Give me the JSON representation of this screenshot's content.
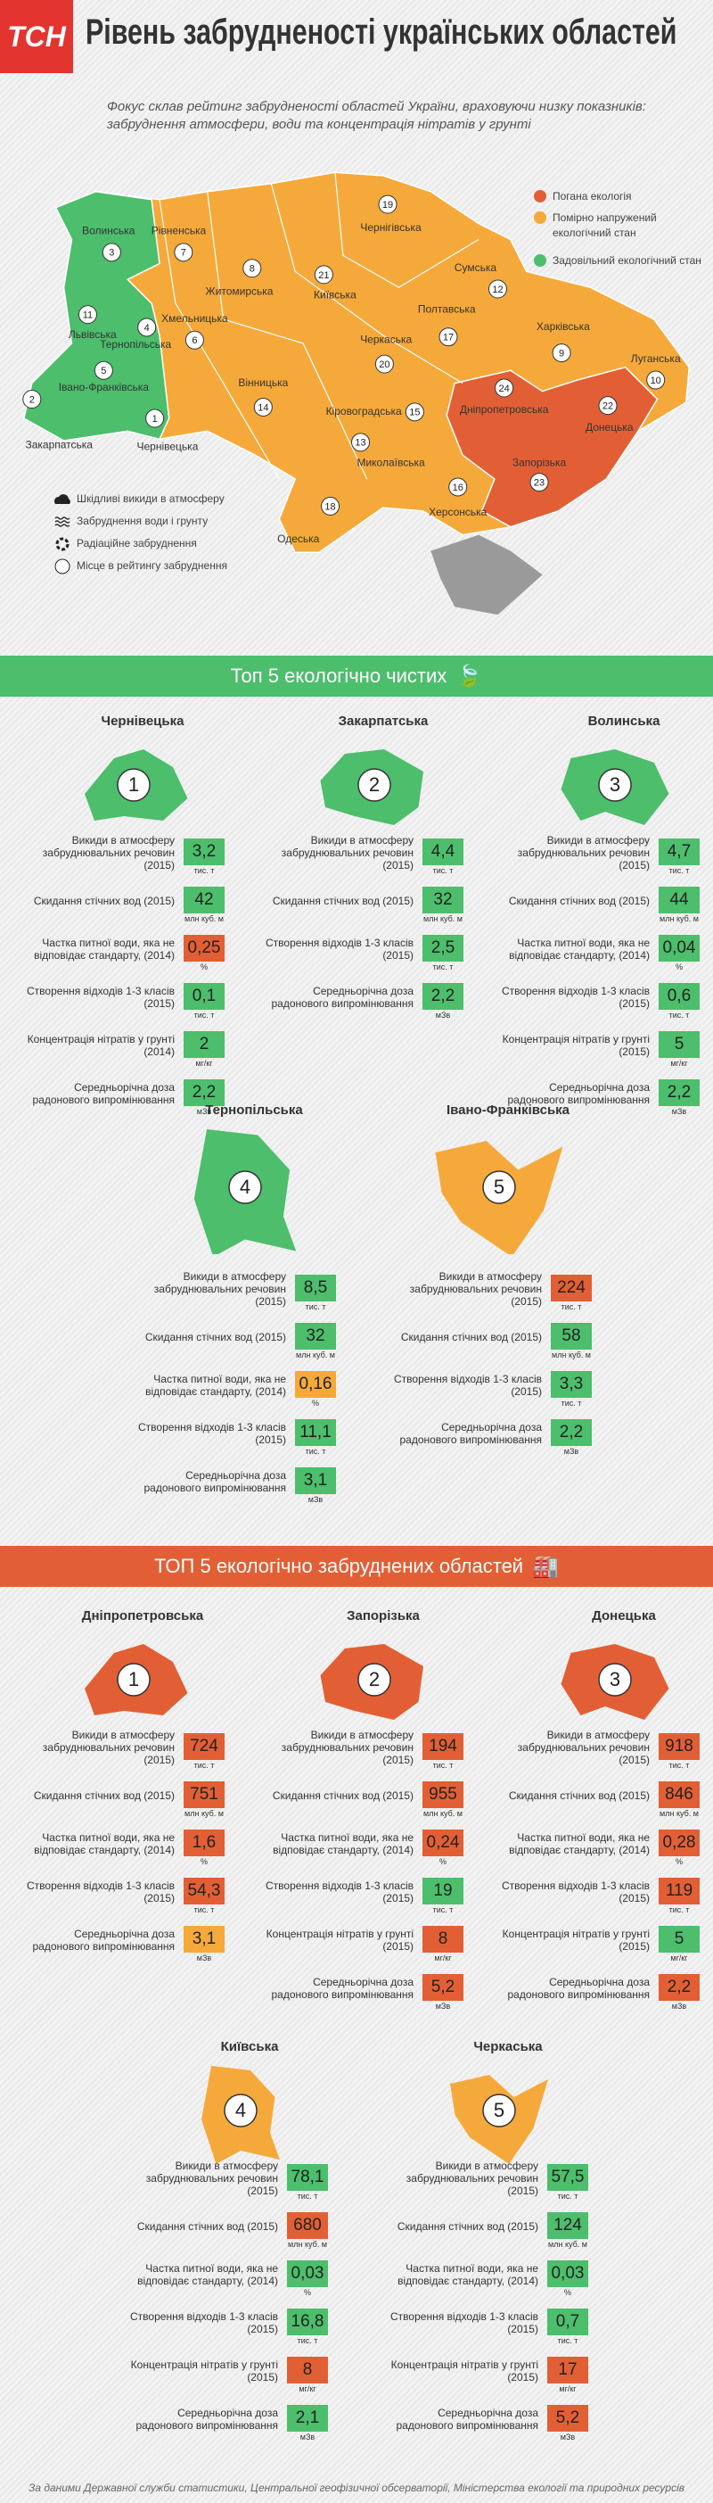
{
  "header": {
    "logo": "ТСН",
    "title": "Рівень забрудненості українських областей"
  },
  "intro": "Фокус склав рейтинг забрудненості областей України, враховуючи низку показників: забруднення атмосфери, води та концентрація нітратів у грунті",
  "map": {
    "legend": [
      {
        "label": "Погана екологія",
        "color": "#e25f35"
      },
      {
        "label": "Помірно напружений екологічний стан",
        "color": "#f6a93b"
      },
      {
        "label": "Задовільний екологічний стан",
        "color": "#4cbe6c"
      }
    ],
    "icon_legend": [
      "Шкідливі викиди в атмосферу",
      "Забруднення води і грунту",
      "Радіаційне забруднення",
      "Місце в рейтингу забруднення"
    ],
    "regions": [
      {
        "name": "Волинська",
        "rank": 3
      },
      {
        "name": "Рівненська",
        "rank": 7
      },
      {
        "name": "Житомирська",
        "rank": 8
      },
      {
        "name": "Чернігівська",
        "rank": 19
      },
      {
        "name": "Сумська",
        "rank": 12
      },
      {
        "name": "Київська",
        "rank": 21
      },
      {
        "name": "Львівська",
        "rank": 11
      },
      {
        "name": "Тернопільська",
        "rank": 4
      },
      {
        "name": "Хмельницька",
        "rank": 6
      },
      {
        "name": "Закарпатська",
        "rank": 2
      },
      {
        "name": "Івано-Франківська",
        "rank": 5
      },
      {
        "name": "Чернівецька",
        "rank": 1
      },
      {
        "name": "Вінницька",
        "rank": 14
      },
      {
        "name": "Черкаська",
        "rank": 20
      },
      {
        "name": "Полтавська",
        "rank": 17
      },
      {
        "name": "Харківська",
        "rank": 9
      },
      {
        "name": "Луганська",
        "rank": 10
      },
      {
        "name": "Кіровоградська",
        "rank": 15
      },
      {
        "name": "Дніпропетровська",
        "rank": 24
      },
      {
        "name": "Донецька",
        "rank": 22
      },
      {
        "name": "Запорізька",
        "rank": 23
      },
      {
        "name": "Миколаївська",
        "rank": 13
      },
      {
        "name": "Херсонська",
        "rank": 16
      },
      {
        "name": "Одеська",
        "rank": 18
      }
    ]
  },
  "clean_section": {
    "title": "Топ 5 екологічно чистих",
    "color": "#4cbe6c",
    "cards": [
      {
        "region": "Чернівецька",
        "rank": 1,
        "color": "#4cbe6c",
        "rows": [
          {
            "label": "Викиди в атмосферу забруднювальних речовин (2015)",
            "value": "3,2",
            "unit": "тис. т",
            "color": "#4cbe6c"
          },
          {
            "label": "Скидання стічних вод (2015)",
            "value": "42",
            "unit": "млн куб. м",
            "color": "#4cbe6c"
          },
          {
            "label": "Частка питної води, яка не відповідає стандарту, (2014)",
            "value": "0,25",
            "unit": "%",
            "color": "#e25f35"
          },
          {
            "label": "Створення відходів 1-3 класів (2015)",
            "value": "0,1",
            "unit": "тис. т",
            "color": "#4cbe6c"
          },
          {
            "label": "Концентрація нітратів у грунті (2014)",
            "value": "2",
            "unit": "мг/кг",
            "color": "#4cbe6c"
          },
          {
            "label": "Середньорічна доза радонового випромінювання",
            "value": "2,2",
            "unit": "мЗв",
            "color": "#4cbe6c"
          }
        ]
      },
      {
        "region": "Закарпатська",
        "rank": 2,
        "color": "#4cbe6c",
        "rows": [
          {
            "label": "Викиди в атмосферу забруднювальних речовин (2015)",
            "value": "4,4",
            "unit": "тис. т",
            "color": "#4cbe6c"
          },
          {
            "label": "Скидання стічних вод (2015)",
            "value": "32",
            "unit": "млн куб. м",
            "color": "#4cbe6c"
          },
          {
            "label": "Створення відходів 1-3 класів (2015)",
            "value": "2,5",
            "unit": "тис. т",
            "color": "#4cbe6c"
          },
          {
            "label": "Середньорічна доза радонового випромінювання",
            "value": "2,2",
            "unit": "мЗв",
            "color": "#4cbe6c"
          }
        ]
      },
      {
        "region": "Волинська",
        "rank": 3,
        "color": "#4cbe6c",
        "rows": [
          {
            "label": "Викиди в атмосферу забруднювальних речовин (2015)",
            "value": "4,7",
            "unit": "тис. т",
            "color": "#4cbe6c"
          },
          {
            "label": "Скидання стічних вод (2015)",
            "value": "44",
            "unit": "млн куб. м",
            "color": "#4cbe6c"
          },
          {
            "label": "Частка питної води, яка не відповідає стандарту, (2014)",
            "value": "0,04",
            "unit": "%",
            "color": "#4cbe6c"
          },
          {
            "label": "Створення відходів 1-3 класів (2015)",
            "value": "0,6",
            "unit": "тис. т",
            "color": "#4cbe6c"
          },
          {
            "label": "Концентрація нітратів у грунті (2015)",
            "value": "5",
            "unit": "мг/кг",
            "color": "#4cbe6c"
          },
          {
            "label": "Середньорічна доза радонового випромінювання",
            "value": "2,2",
            "unit": "мЗв",
            "color": "#4cbe6c"
          }
        ]
      },
      {
        "region": "Тернопільська",
        "rank": 4,
        "color": "#4cbe6c",
        "rows": [
          {
            "label": "Викиди в атмосферу забруднювальних речовин (2015)",
            "value": "8,5",
            "unit": "тис. т",
            "color": "#4cbe6c"
          },
          {
            "label": "Скидання стічних вод (2015)",
            "value": "32",
            "unit": "млн куб. м",
            "color": "#4cbe6c"
          },
          {
            "label": "Частка питної води, яка не відповідає стандарту, (2014)",
            "value": "0,16",
            "unit": "%",
            "color": "#f6a93b"
          },
          {
            "label": "Створення відходів 1-3 класів (2015)",
            "value": "11,1",
            "unit": "тис. т",
            "color": "#4cbe6c"
          },
          {
            "label": "Середньорічна доза радонового випромінювання",
            "value": "3,1",
            "unit": "мЗв",
            "color": "#4cbe6c"
          }
        ]
      },
      {
        "region": "Івано-Франківська",
        "rank": 5,
        "color": "#f6a93b",
        "rows": [
          {
            "label": "Викиди в атмосферу забруднювальних речовин (2015)",
            "value": "224",
            "unit": "тис. т",
            "color": "#e25f35"
          },
          {
            "label": "Скидання стічних вод (2015)",
            "value": "58",
            "unit": "млн куб. м",
            "color": "#4cbe6c"
          },
          {
            "label": "Створення відходів 1-3 класів (2015)",
            "value": "3,3",
            "unit": "тис. т",
            "color": "#4cbe6c"
          },
          {
            "label": "Середньорічна доза радонового випромінювання",
            "value": "2,2",
            "unit": "мЗв",
            "color": "#4cbe6c"
          }
        ]
      }
    ]
  },
  "dirty_section": {
    "title": "ТОП 5 екологічно забруднених областей",
    "color": "#e25f35",
    "cards": [
      {
        "region": "Дніпропетровська",
        "rank": 1,
        "color": "#e25f35",
        "rows": [
          {
            "label": "Викиди в атмосферу забруднювальних речовин (2015)",
            "value": "724",
            "unit": "тис. т",
            "color": "#e25f35"
          },
          {
            "label": "Скидання стічних вод (2015)",
            "value": "751",
            "unit": "млн куб. м",
            "color": "#e25f35"
          },
          {
            "label": "Частка питної води, яка не відповідає стандарту, (2014)",
            "value": "1,6",
            "unit": "%",
            "color": "#e25f35"
          },
          {
            "label": "Створення відходів 1-3 класів (2015)",
            "value": "54,3",
            "unit": "тис. т",
            "color": "#e25f35"
          },
          {
            "label": "Середньорічна доза радонового випромінювання",
            "value": "3,1",
            "unit": "мЗв",
            "color": "#f6a93b"
          }
        ]
      },
      {
        "region": "Запорізька",
        "rank": 2,
        "color": "#e25f35",
        "rows": [
          {
            "label": "Викиди в атмосферу забруднювальних речовин (2015)",
            "value": "194",
            "unit": "тис. т",
            "color": "#e25f35"
          },
          {
            "label": "Скидання стічних вод (2015)",
            "value": "955",
            "unit": "млн куб. м",
            "color": "#e25f35"
          },
          {
            "label": "Частка питної води, яка не відповідає стандарту, (2014)",
            "value": "0,24",
            "unit": "%",
            "color": "#e25f35"
          },
          {
            "label": "Створення відходів 1-3 класів (2015)",
            "value": "19",
            "unit": "тис. т",
            "color": "#4cbe6c"
          },
          {
            "label": "Концентрація нітратів у грунті (2015)",
            "value": "8",
            "unit": "мг/кг",
            "color": "#e25f35"
          },
          {
            "label": "Середньорічна доза радонового випромінювання",
            "value": "5,2",
            "unit": "мЗв",
            "color": "#e25f35"
          }
        ]
      },
      {
        "region": "Донецька",
        "rank": 3,
        "color": "#e25f35",
        "rows": [
          {
            "label": "Викиди в атмосферу забруднювальних речовин (2015)",
            "value": "918",
            "unit": "тис. т",
            "color": "#e25f35"
          },
          {
            "label": "Скидання стічних вод (2015)",
            "value": "846",
            "unit": "млн куб. м",
            "color": "#e25f35"
          },
          {
            "label": "Частка питної води, яка не відповідає стандарту, (2014)",
            "value": "0,28",
            "unit": "%",
            "color": "#e25f35"
          },
          {
            "label": "Створення відходів 1-3 класів (2015)",
            "value": "119",
            "unit": "тис. т",
            "color": "#e25f35"
          },
          {
            "label": "Концентрація нітратів у грунті (2015)",
            "value": "5",
            "unit": "мг/кг",
            "color": "#4cbe6c"
          },
          {
            "label": "Середньорічна доза радонового випромінювання",
            "value": "2,2",
            "unit": "мЗв",
            "color": "#e25f35"
          }
        ]
      },
      {
        "region": "Київська",
        "rank": 4,
        "color": "#f6a93b",
        "rows": [
          {
            "label": "Викиди в атмосферу забруднювальних речовин (2015)",
            "value": "78,1",
            "unit": "тис. т",
            "color": "#4cbe6c"
          },
          {
            "label": "Скидання стічних вод (2015)",
            "value": "680",
            "unit": "млн куб. м",
            "color": "#e25f35"
          },
          {
            "label": "Частка питної води, яка не відповідає стандарту, (2014)",
            "value": "0,03",
            "unit": "%",
            "color": "#4cbe6c"
          },
          {
            "label": "Створення відходів 1-3 класів (2015)",
            "value": "16,8",
            "unit": "тис. т",
            "color": "#4cbe6c"
          },
          {
            "label": "Концентрація нітратів у грунті (2015)",
            "value": "8",
            "unit": "мг/кг",
            "color": "#e25f35"
          },
          {
            "label": "Середньорічна доза радонового випромінювання",
            "value": "2,1",
            "unit": "мЗв",
            "color": "#4cbe6c"
          }
        ]
      },
      {
        "region": "Черкаська",
        "rank": 5,
        "color": "#f6a93b",
        "rows": [
          {
            "label": "Викиди в атмосферу забруднювальних речовин (2015)",
            "value": "57,5",
            "unit": "тис. т",
            "color": "#4cbe6c"
          },
          {
            "label": "Скидання стічних вод (2015)",
            "value": "124",
            "unit": "млн куб. м",
            "color": "#4cbe6c"
          },
          {
            "label": "Частка питної води, яка не відповідає стандарту, (2014)",
            "value": "0,03",
            "unit": "%",
            "color": "#4cbe6c"
          },
          {
            "label": "Створення відходів 1-3 класів (2015)",
            "value": "0,7",
            "unit": "тис. т",
            "color": "#4cbe6c"
          },
          {
            "label": "Концентрація нітратів у грунті (2015)",
            "value": "17",
            "unit": "мг/кг",
            "color": "#e25f35"
          },
          {
            "label": "Середньорічна доза радонового випромінювання",
            "value": "5,2",
            "unit": "мЗв",
            "color": "#e25f35"
          }
        ]
      }
    ]
  },
  "footer": "За даними Державної служби статистики, Центральної геофізичної обсерваторії, Міністерства екології та природних ресурсів"
}
